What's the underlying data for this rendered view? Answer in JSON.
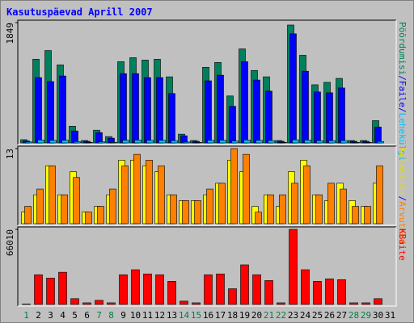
{
  "title": "Kasutuspäevad Aprill 2007",
  "categories": [
    "1",
    "2",
    "3",
    "4",
    "5",
    "6",
    "7",
    "8",
    "9",
    "10",
    "11",
    "12",
    "13",
    "14",
    "15",
    "16",
    "17",
    "18",
    "19",
    "20",
    "21",
    "22",
    "23",
    "24",
    "25",
    "26",
    "27",
    "28",
    "29",
    "30",
    "31"
  ],
  "category_colors": [
    "#008040",
    "#000000",
    "#000000",
    "#000000",
    "#000000",
    "#000000",
    "#008040",
    "#008040",
    "#000000",
    "#000000",
    "#000000",
    "#000000",
    "#000000",
    "#008040",
    "#008040",
    "#000000",
    "#000000",
    "#000000",
    "#000000",
    "#000000",
    "#008040",
    "#008040",
    "#000000",
    "#000000",
    "#000000",
    "#000000",
    "#000000",
    "#008040",
    "#008040",
    "#000000",
    "#000000"
  ],
  "legend_separator": "/",
  "chart_data": [
    {
      "type": "bar",
      "ylim": [
        0,
        1849
      ],
      "yticks": [
        1849
      ],
      "series": [
        {
          "name": "Pöördumisi",
          "color": "#00805c",
          "values": [
            50,
            1286,
            1420,
            1200,
            257,
            37,
            196,
            98,
            1249,
            1310,
            1273,
            1286,
            1016,
            135,
            37,
            1163,
            1237,
            722,
            1445,
            1114,
            1016,
            37,
            1812,
            1347,
            894,
            931,
            992,
            37,
            37,
            343,
            null
          ]
        },
        {
          "name": "Faile",
          "color": "#0000ff",
          "values": [
            30,
            1004,
            943,
            1029,
            184,
            25,
            159,
            73,
            1065,
            1065,
            1004,
            1004,
            759,
            110,
            25,
            955,
            1041,
            563,
            1249,
            967,
            796,
            25,
            1677,
            1102,
            784,
            771,
            845,
            25,
            25,
            245,
            null
          ]
        },
        {
          "name": "Lehekülgi",
          "color": "#00c0ff",
          "values": [
            15,
            45,
            40,
            42,
            20,
            8,
            18,
            10,
            42,
            44,
            40,
            41,
            35,
            14,
            8,
            40,
            42,
            30,
            45,
            40,
            36,
            8,
            48,
            44,
            34,
            35,
            36,
            8,
            8,
            22,
            null
          ]
        }
      ]
    },
    {
      "type": "bar",
      "ylim": [
        0,
        13
      ],
      "yticks": [
        13
      ],
      "series": [
        {
          "name": "Külastusi",
          "color": "#ffff00",
          "values": [
            2,
            5,
            10,
            5,
            9,
            2,
            3,
            5,
            11,
            11,
            10,
            9,
            5,
            4,
            4,
            5,
            7,
            11,
            9,
            3,
            5,
            3,
            9,
            11,
            5,
            4,
            7,
            4,
            3,
            7,
            null
          ]
        },
        {
          "name": "Arvuteid",
          "color": "#ff8000",
          "values": [
            3,
            6,
            10,
            5,
            8,
            2,
            3,
            6,
            10,
            12,
            11,
            10,
            5,
            4,
            4,
            6,
            7,
            13,
            12,
            2,
            5,
            5,
            7,
            10,
            5,
            7,
            6,
            3,
            3,
            10,
            null
          ]
        }
      ]
    },
    {
      "type": "bar",
      "ylim": [
        0,
        66010
      ],
      "yticks": [
        66010
      ],
      "series": [
        {
          "name": "KBaite",
          "color": "#ff0000",
          "values": [
            300,
            26100,
            23200,
            28300,
            5100,
            1450,
            3600,
            1450,
            26100,
            30500,
            26800,
            26100,
            20300,
            2900,
            1450,
            26100,
            26800,
            13800,
            34800,
            26100,
            21000,
            1450,
            66010,
            30500,
            20300,
            22500,
            21800,
            1450,
            1450,
            5100,
            null
          ]
        }
      ]
    }
  ]
}
